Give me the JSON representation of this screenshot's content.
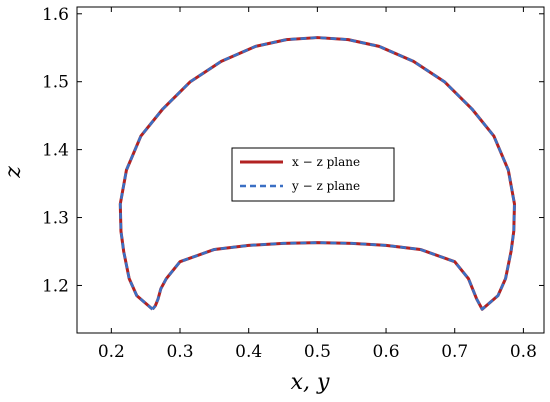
{
  "chart_data": {
    "type": "line",
    "xlabel": "x, y",
    "ylabel": "z",
    "xlim": [
      0.15,
      0.83
    ],
    "ylim": [
      1.13,
      1.61
    ],
    "xticks": [
      "0.2",
      "0.3",
      "0.4",
      "0.5",
      "0.6",
      "0.7",
      "0.8"
    ],
    "yticks": [
      "1.2",
      "1.3",
      "1.4",
      "1.5",
      "1.6"
    ],
    "grid": false,
    "legend_position": "center",
    "series": [
      {
        "name": "x − z plane",
        "color": "#b22222",
        "dash": "solid",
        "x": [
          0.26,
          0.237,
          0.226,
          0.218,
          0.214,
          0.213,
          0.222,
          0.243,
          0.275,
          0.315,
          0.36,
          0.41,
          0.455,
          0.5,
          0.545,
          0.59,
          0.64,
          0.685,
          0.725,
          0.757,
          0.778,
          0.787,
          0.786,
          0.782,
          0.774,
          0.763,
          0.74,
          0.732,
          0.72,
          0.7,
          0.65,
          0.6,
          0.55,
          0.5,
          0.45,
          0.4,
          0.35,
          0.3,
          0.28,
          0.272,
          0.268,
          0.264,
          0.26
        ],
        "y": [
          1.165,
          1.185,
          1.21,
          1.25,
          1.28,
          1.32,
          1.37,
          1.42,
          1.46,
          1.5,
          1.53,
          1.552,
          1.562,
          1.565,
          1.562,
          1.552,
          1.53,
          1.5,
          1.46,
          1.42,
          1.37,
          1.32,
          1.28,
          1.25,
          1.21,
          1.185,
          1.165,
          1.18,
          1.21,
          1.235,
          1.253,
          1.259,
          1.262,
          1.263,
          1.262,
          1.259,
          1.253,
          1.235,
          1.21,
          1.195,
          1.18,
          1.17,
          1.165
        ]
      },
      {
        "name": "y − z plane",
        "color": "#3a6fc4",
        "dash": "dashed",
        "x": [
          0.26,
          0.237,
          0.226,
          0.218,
          0.214,
          0.213,
          0.222,
          0.243,
          0.275,
          0.315,
          0.36,
          0.41,
          0.455,
          0.5,
          0.545,
          0.59,
          0.64,
          0.685,
          0.725,
          0.757,
          0.778,
          0.787,
          0.786,
          0.782,
          0.774,
          0.763,
          0.74,
          0.732,
          0.72,
          0.7,
          0.65,
          0.6,
          0.55,
          0.5,
          0.45,
          0.4,
          0.35,
          0.3,
          0.28,
          0.272,
          0.268,
          0.264,
          0.26
        ],
        "y": [
          1.165,
          1.185,
          1.21,
          1.25,
          1.28,
          1.32,
          1.37,
          1.42,
          1.46,
          1.5,
          1.53,
          1.552,
          1.562,
          1.565,
          1.562,
          1.552,
          1.53,
          1.5,
          1.46,
          1.42,
          1.37,
          1.32,
          1.28,
          1.25,
          1.21,
          1.185,
          1.165,
          1.18,
          1.21,
          1.235,
          1.253,
          1.259,
          1.262,
          1.263,
          1.262,
          1.259,
          1.253,
          1.235,
          1.21,
          1.195,
          1.18,
          1.17,
          1.165
        ]
      }
    ]
  }
}
